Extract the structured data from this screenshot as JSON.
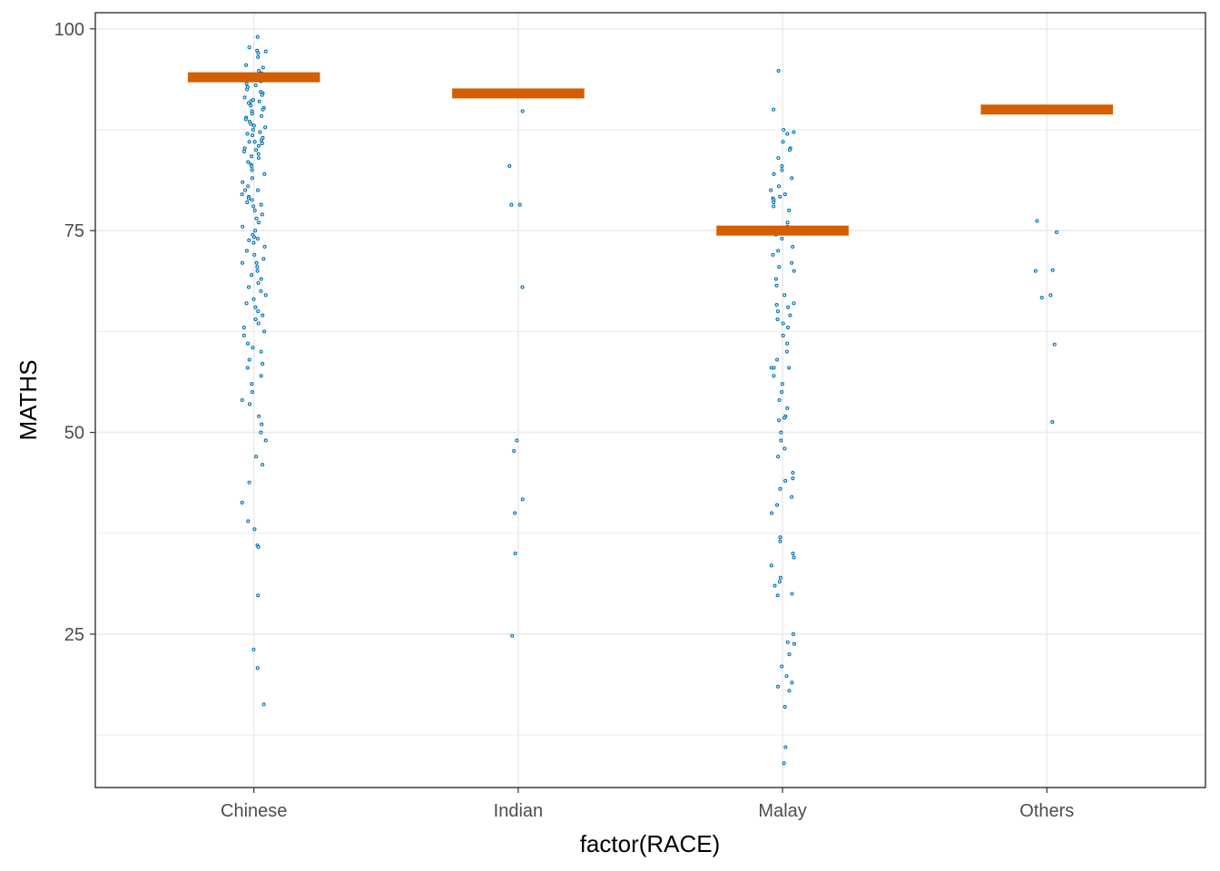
{
  "chart_data": {
    "type": "scatter",
    "xlabel": "factor(RACE)",
    "ylabel": "MATHS",
    "categories": [
      "Chinese",
      "Indian",
      "Malay",
      "Others"
    ],
    "ylim": [
      6,
      102
    ],
    "y_ticks": [
      25,
      50,
      75,
      100
    ],
    "y_tick_labels": [
      "25",
      "50",
      "75",
      "100"
    ],
    "grid": true,
    "colors": {
      "points": "#0072b2",
      "summary": "#d55e00",
      "grid": "#ebebeb",
      "panel_border": "#333333"
    },
    "summary_values": [
      94,
      92,
      75,
      90
    ],
    "points": [
      {
        "category": "Chinese",
        "values": [
          99,
          97.7,
          97.3,
          97.2,
          97,
          96.5,
          95.5,
          95.2,
          94.8,
          94.5,
          94.2,
          93.8,
          93.5,
          93.2,
          93,
          92.8,
          92.5,
          92.2,
          92,
          91.8,
          91.5,
          91.2,
          91,
          91,
          90.8,
          90.5,
          90.2,
          90,
          89.8,
          89.5,
          89.2,
          89,
          88.8,
          88.5,
          88.2,
          88,
          87.8,
          87.5,
          87.2,
          87,
          86.8,
          86.5,
          86.2,
          86,
          86,
          85.8,
          85.5,
          85.2,
          85,
          84.8,
          84.5,
          84.2,
          84,
          83.5,
          83.2,
          83,
          82.5,
          82,
          81.5,
          81,
          80.5,
          80,
          80,
          79.5,
          79.2,
          79,
          78.8,
          78.5,
          78.2,
          78,
          77.5,
          77,
          76.5,
          76,
          75.5,
          75,
          74.5,
          74.2,
          74,
          73.8,
          73.5,
          73,
          72.5,
          72,
          71.5,
          71,
          71,
          70.5,
          70,
          69.5,
          69,
          68.5,
          68,
          67.5,
          67,
          66.5,
          66,
          65.5,
          65,
          64.5,
          64,
          63.5,
          63,
          62.5,
          62,
          61,
          60.5,
          60,
          59,
          58.5,
          58,
          57,
          56,
          55,
          54,
          53.5,
          52,
          51,
          50,
          49,
          47,
          46,
          43.8,
          41.3,
          39,
          38,
          36,
          35.8,
          29.8,
          23.1,
          20.8,
          16.3
        ]
      },
      {
        "category": "Indian",
        "values": [
          89.8,
          83,
          78.2,
          78.2,
          68,
          49,
          47.7,
          41.7,
          40,
          35,
          24.8
        ]
      },
      {
        "category": "Malay",
        "values": [
          94.8,
          90,
          87.5,
          87.2,
          87,
          86,
          85.2,
          85,
          84,
          83,
          82.5,
          82,
          81.5,
          80.5,
          80,
          79.5,
          79.2,
          79,
          78.8,
          78.5,
          78,
          77.5,
          76,
          75.5,
          75,
          74.5,
          74,
          73,
          72.5,
          72,
          71,
          70.5,
          70,
          69,
          68.2,
          67,
          66,
          65.8,
          65.5,
          65,
          64.5,
          64,
          63.5,
          63,
          62,
          61,
          60,
          59,
          58,
          58,
          58,
          57,
          56,
          55,
          54,
          53,
          52,
          51.8,
          51.5,
          50,
          49,
          48,
          47,
          45,
          44.3,
          44,
          43,
          42,
          41,
          40,
          37,
          36.5,
          35,
          34.5,
          33.5,
          32,
          31.5,
          31,
          30,
          29.8,
          25,
          24,
          23.8,
          22.5,
          21,
          19.8,
          19,
          18.5,
          18,
          16,
          11,
          9
        ]
      },
      {
        "category": "Others",
        "values": [
          76.2,
          74.8,
          70.1,
          70,
          67,
          66.7,
          60.9,
          51.3
        ]
      }
    ]
  }
}
